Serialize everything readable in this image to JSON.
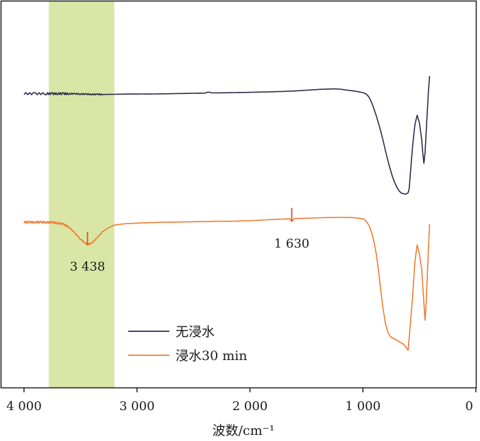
{
  "chart_data": {
    "type": "line",
    "xlabel": "波数/cm⁻¹",
    "ylabel": "",
    "xlim": [
      4000,
      0
    ],
    "x_reversed": true,
    "x_ticks": [
      4000,
      3000,
      2000,
      1000,
      0
    ],
    "x_tick_labels": [
      "4 000",
      "3 000",
      "2 000",
      "1 000",
      "0"
    ],
    "y_ticks_shown": false,
    "grid": false,
    "legend_position": "bottom-center",
    "highlight_band": {
      "x_from": 3780,
      "x_to": 3200,
      "color": "#d9e6a6"
    },
    "series": [
      {
        "name": "无浸水",
        "color": "#2a2848",
        "x": [
          4000,
          3900,
          3800,
          3750,
          3700,
          3650,
          3600,
          3550,
          3500,
          3450,
          3400,
          3350,
          3300,
          3250,
          3200,
          3150,
          3100,
          3050,
          3000,
          2950,
          2900,
          2850,
          2800,
          2700,
          2600,
          2500,
          2400,
          2370,
          2350,
          2330,
          2300,
          2200,
          2100,
          2000,
          1900,
          1800,
          1700,
          1650,
          1600,
          1500,
          1400,
          1350,
          1300,
          1250,
          1200,
          1150,
          1100,
          1050,
          1000,
          980,
          960,
          940,
          920,
          900,
          880,
          860,
          840,
          820,
          800,
          780,
          760,
          740,
          720,
          700,
          680,
          660,
          640,
          620,
          600,
          590,
          580,
          560,
          540,
          520,
          500,
          480,
          470,
          460,
          450,
          440,
          430,
          420,
          410
        ],
        "y": [
          63.5,
          63.6,
          63.5,
          63.6,
          63.5,
          63.6,
          63.7,
          63.8,
          64.0,
          64.3,
          64.5,
          64.6,
          64.7,
          64.6,
          64.5,
          64.3,
          64.2,
          64.1,
          64.2,
          64.0,
          64.2,
          64.0,
          63.9,
          63.6,
          63.3,
          63.0,
          62.7,
          61.3,
          61.8,
          62.5,
          62.5,
          62.2,
          61.9,
          61.6,
          61.2,
          60.8,
          60.3,
          59.9,
          59.6,
          58.5,
          57.5,
          57.0,
          56.8,
          56.6,
          57.0,
          58.2,
          59.2,
          60.4,
          62.0,
          63.3,
          65.6,
          70.3,
          77.6,
          86.7,
          96.7,
          107.9,
          119.8,
          133.0,
          147.1,
          160.3,
          172.5,
          183.7,
          192.7,
          199.8,
          205.3,
          208.5,
          209.5,
          210.0,
          208.2,
          201.8,
          180.2,
          140.0,
          109.0,
          95.0,
          106.0,
          130.0,
          150.0,
          165.0,
          150.0,
          120.0,
          90.0,
          60.0,
          38.0
        ]
      },
      {
        "name": "浸水30 min",
        "color": "#f07a2e",
        "x": [
          4000,
          3950,
          3900,
          3850,
          3800,
          3750,
          3700,
          3650,
          3600,
          3550,
          3500,
          3450,
          3438,
          3400,
          3350,
          3300,
          3250,
          3200,
          3150,
          3100,
          3050,
          3000,
          2950,
          2900,
          2800,
          2700,
          2600,
          2500,
          2400,
          2370,
          2350,
          2330,
          2300,
          2200,
          2100,
          2000,
          1900,
          1800,
          1700,
          1650,
          1630,
          1610,
          1600,
          1500,
          1400,
          1300,
          1200,
          1100,
          1050,
          1000,
          980,
          960,
          940,
          920,
          900,
          880,
          860,
          840,
          820,
          800,
          780,
          760,
          740,
          720,
          700,
          680,
          660,
          640,
          620,
          600,
          590,
          580,
          560,
          540,
          520,
          500,
          480,
          470,
          460,
          450,
          440,
          430,
          420,
          410
        ],
        "y": [
          2.0,
          2.0,
          1.9,
          2.0,
          2.1,
          2.3,
          3.1,
          5.1,
          9.5,
          17.7,
          26.6,
          33.6,
          34.5,
          32.7,
          23.8,
          15.3,
          9.9,
          6.2,
          5.0,
          4.2,
          3.7,
          3.3,
          3.0,
          2.7,
          2.2,
          1.9,
          1.6,
          1.3,
          1.0,
          0.8,
          0.9,
          0.8,
          0.6,
          0.7,
          0.3,
          -0.3,
          -1.0,
          -2.0,
          -2.6,
          -3.0,
          0.5,
          -3.1,
          -3.3,
          -3.8,
          -4.4,
          -4.8,
          -5.0,
          -4.8,
          -4.0,
          -3.0,
          -1.0,
          3.0,
          9.0,
          19.0,
          32.0,
          50.0,
          75.0,
          105.0,
          130.0,
          150.0,
          162.0,
          168.0,
          171.0,
          172.0,
          174.0,
          176.0,
          178.0,
          180.0,
          184.0,
          189.0,
          170.0,
          150.0,
          110.0,
          60.0,
          35.0,
          48.0,
          70.0,
          95.0,
          120.0,
          145.0,
          120.0,
          80.0,
          40.0,
          5.0
        ]
      }
    ],
    "annotations": [
      {
        "text": "3 438",
        "x": 3438,
        "series": 1,
        "marker_top": 16.0,
        "marker_bottom": 34.5,
        "label_position": "below"
      },
      {
        "text": "1 630",
        "x": 1630,
        "series": 1,
        "marker_top": -19.0,
        "marker_bottom": 1.0,
        "label_position": "below"
      }
    ]
  }
}
